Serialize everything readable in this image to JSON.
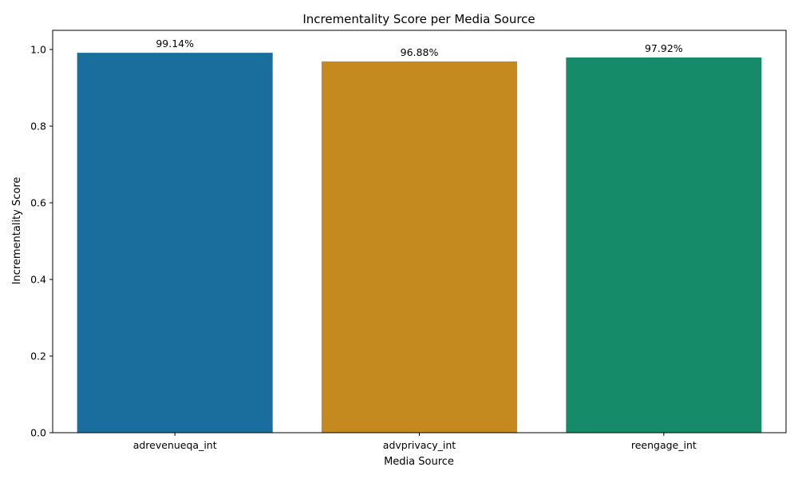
{
  "chart_data": {
    "type": "bar",
    "title": "Incrementality Score per Media Source",
    "xlabel": "Media Source",
    "ylabel": "Incrementality Score",
    "categories": [
      "adrevenueqa_int",
      "advprivacy_int",
      "reengage_int"
    ],
    "values": [
      0.9914,
      0.9688,
      0.9792
    ],
    "data_labels": [
      "99.14%",
      "96.88%",
      "97.92%"
    ],
    "colors": [
      "#1a6e9e",
      "#c4891f",
      "#168b6a"
    ],
    "ylim": [
      0,
      1.05
    ],
    "yticks": [
      0.0,
      0.2,
      0.4,
      0.6,
      0.8,
      1.0
    ],
    "ytick_labels": [
      "0.0",
      "0.2",
      "0.4",
      "0.6",
      "0.8",
      "1.0"
    ],
    "grid": false,
    "legend": "none"
  }
}
